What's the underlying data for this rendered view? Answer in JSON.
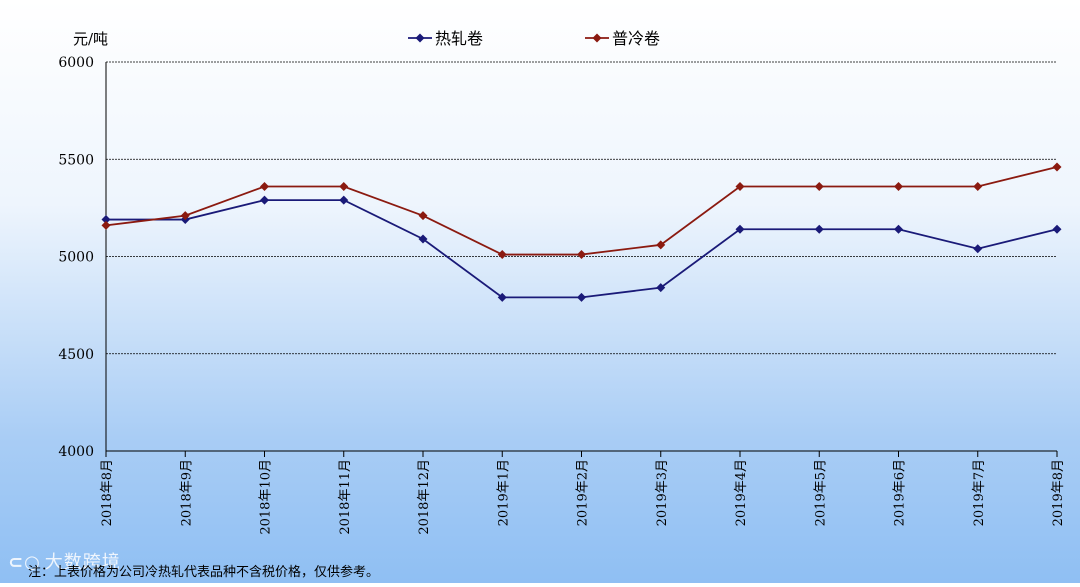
{
  "chart_data": {
    "type": "line",
    "title": "",
    "ylabel": "元/吨",
    "xlabel": "",
    "ylim": [
      4000,
      6000
    ],
    "yticks": [
      4000,
      4500,
      5000,
      5500,
      6000
    ],
    "grid": true,
    "legend_position": "top-center",
    "categories": [
      "2018年8月",
      "2018年9月",
      "2018年10月",
      "2018年11月",
      "2018年12月",
      "2019年1月",
      "2019年2月",
      "2019年3月",
      "2019年4月",
      "2019年5月",
      "2019年6月",
      "2019年7月",
      "2019年8月"
    ],
    "series": [
      {
        "name": "热轧卷",
        "color": "#1a1a78",
        "marker": "diamond",
        "values": [
          5190,
          5190,
          5290,
          5290,
          5090,
          4790,
          4790,
          4840,
          5140,
          5140,
          5140,
          5040,
          5140
        ]
      },
      {
        "name": "普冷卷",
        "color": "#8b1a10",
        "marker": "diamond",
        "values": [
          5160,
          5210,
          5360,
          5360,
          5210,
          5010,
          5010,
          5060,
          5360,
          5360,
          5360,
          5360,
          5460
        ]
      }
    ]
  },
  "note": "注：上表价格为公司冷热轧代表品种不含税价格，仅供参考。",
  "watermark": "大数跨境"
}
